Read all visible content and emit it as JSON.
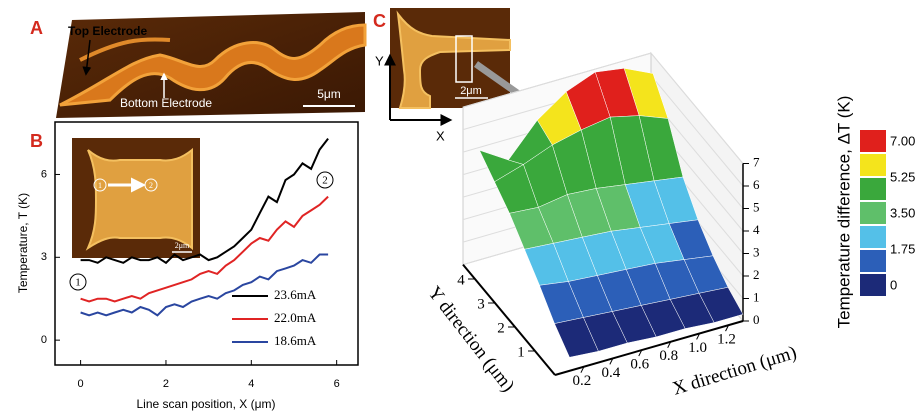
{
  "panel_labels": [
    "A",
    "B",
    "C"
  ],
  "panel_a": {
    "labels": [
      "Top Electrode",
      "Bottom Electrode"
    ],
    "scale_bar": "5μm"
  },
  "chart_data": [
    {
      "type": "line",
      "ylabel": "Temperature, T (K)",
      "xlabel": "Line scan position, X (μm)",
      "x": [
        0,
        0.2,
        0.4,
        0.6,
        0.8,
        1.0,
        1.2,
        1.4,
        1.6,
        1.8,
        2.0,
        2.2,
        2.4,
        2.6,
        2.8,
        3.0,
        3.2,
        3.4,
        3.6,
        3.8,
        4.0,
        4.2,
        4.4,
        4.6,
        4.8,
        5.0,
        5.2,
        5.4,
        5.6,
        5.8
      ],
      "xlim": [
        -0.6,
        6.5
      ],
      "xticks": [
        0,
        2,
        4,
        6
      ],
      "ylim": [
        -0.9,
        7.9
      ],
      "yticks": [
        0,
        3,
        6
      ],
      "series": [
        {
          "name": "23.6mA",
          "color": "#000000",
          "values": [
            2.9,
            2.9,
            2.8,
            3.0,
            2.9,
            2.8,
            3.0,
            2.9,
            2.9,
            3.0,
            2.8,
            3.1,
            2.9,
            3.0,
            3.1,
            2.9,
            3.0,
            3.2,
            3.4,
            3.7,
            4.0,
            4.6,
            5.2,
            5.0,
            5.8,
            6.0,
            6.4,
            6.2,
            6.9,
            7.3
          ]
        },
        {
          "name": "22.0mA",
          "color": "#e02424",
          "values": [
            1.5,
            1.4,
            1.5,
            1.5,
            1.4,
            1.5,
            1.6,
            1.5,
            1.7,
            1.8,
            1.9,
            2.0,
            2.1,
            2.2,
            2.4,
            2.5,
            2.4,
            2.7,
            2.9,
            3.2,
            3.5,
            3.7,
            3.6,
            4.0,
            4.3,
            4.1,
            4.5,
            4.7,
            4.9,
            5.2
          ]
        },
        {
          "name": "18.6mA",
          "color": "#2a46a0",
          "values": [
            1.0,
            0.9,
            1.0,
            0.9,
            1.0,
            1.1,
            1.0,
            1.2,
            1.1,
            0.9,
            1.2,
            1.3,
            1.2,
            1.4,
            1.5,
            1.6,
            1.5,
            1.7,
            1.8,
            2.0,
            2.1,
            2.3,
            2.2,
            2.5,
            2.6,
            2.7,
            2.9,
            2.8,
            3.1,
            3.1
          ]
        }
      ],
      "annotations": [
        "1",
        "2"
      ],
      "inset": {
        "markers": [
          "1",
          "2"
        ],
        "scale_bar": "2μm"
      }
    },
    {
      "type": "surface3d",
      "xlabel": "X direction (μm)",
      "ylabel": "Y direction (μm)",
      "zlabel": "Temperature difference, ΔT (K)",
      "x": [
        0.1,
        0.3,
        0.5,
        0.7,
        0.9,
        1.1,
        1.3
      ],
      "y": [
        0,
        0.75,
        1.5,
        2.25,
        3,
        3.75,
        4.5
      ],
      "z": [
        [
          0.6,
          0.5,
          0.5,
          0.4,
          0.4,
          0.3,
          0.3
        ],
        [
          1.3,
          1.2,
          1.1,
          1.0,
          0.9,
          0.8,
          0.7
        ],
        [
          2.2,
          2.0,
          1.9,
          1.8,
          1.7,
          1.5,
          1.3
        ],
        [
          3.0,
          2.9,
          2.8,
          2.7,
          2.5,
          2.3,
          2.1
        ],
        [
          3.8,
          3.7,
          3.9,
          3.8,
          3.6,
          3.4,
          3.2
        ],
        [
          4.4,
          4.8,
          5.3,
          5.6,
          5.8,
          5.5,
          5.0
        ],
        [
          5.0,
          4.2,
          5.6,
          6.5,
          7.0,
          6.8,
          6.2
        ]
      ],
      "xlim": [
        0,
        1.3
      ],
      "ylim": [
        0,
        4.6
      ],
      "zlim": [
        0,
        7
      ],
      "xticks": [
        0.2,
        0.4,
        0.6,
        0.8,
        {
          "value": 1,
          "label": "1.0"
        },
        1.2
      ],
      "yticks": [
        1,
        2,
        3,
        4
      ],
      "zticks": [
        0,
        1,
        2,
        3,
        4,
        5,
        6,
        7
      ],
      "colorbar": {
        "ticks": [
          0,
          1.75,
          {
            "value": 3.5,
            "label": "3.50"
          },
          5.25,
          {
            "value": 7,
            "label": "7.00"
          }
        ],
        "colors": [
          "#1c2a78",
          "#2c5fb8",
          "#54c0e8",
          "#5fbf6a",
          "#3aa83c",
          "#f4e41c",
          "#e0201c"
        ]
      },
      "inset": {
        "scale_bar": "2μm",
        "axes": [
          "Y",
          "X"
        ]
      }
    }
  ]
}
